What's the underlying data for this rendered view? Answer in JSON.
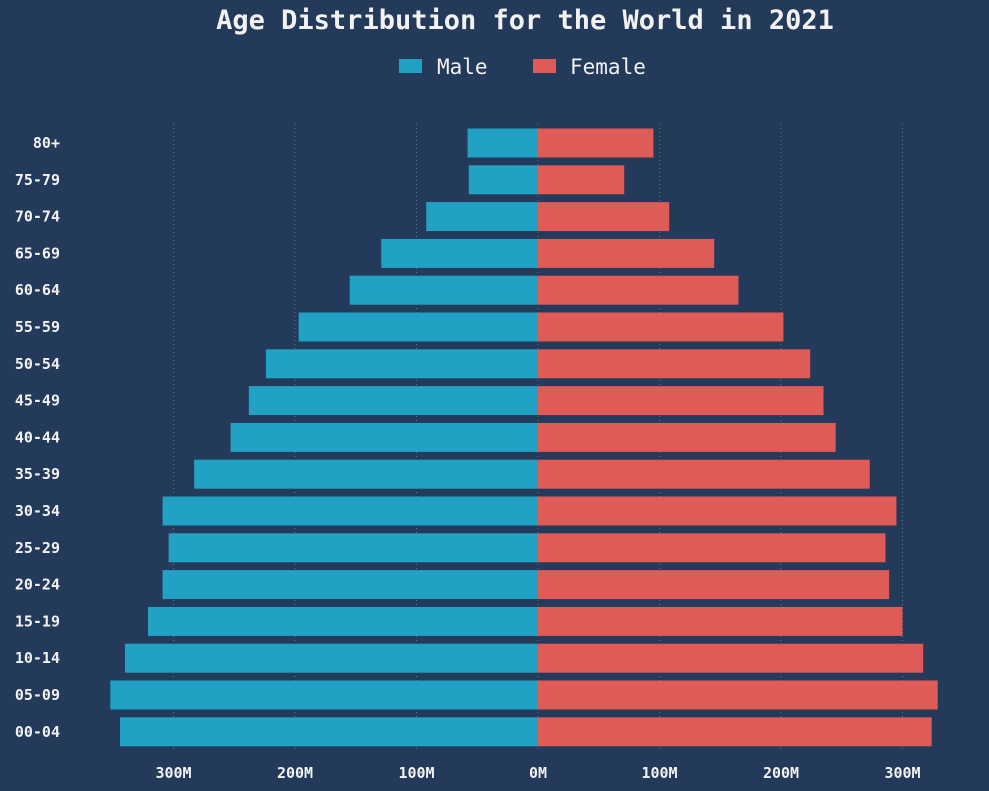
{
  "chart_data": {
    "type": "bar",
    "orientation": "horizontal",
    "title": "Age Distribution for the World in 2021",
    "categories": [
      "80+",
      "75-79",
      "70-74",
      "65-69",
      "60-64",
      "55-59",
      "50-54",
      "45-49",
      "40-44",
      "35-39",
      "30-34",
      "25-29",
      "20-24",
      "15-19",
      "10-14",
      "05-09",
      "00-04"
    ],
    "series": [
      {
        "name": "Male",
        "color": "#21a2c4",
        "values": [
          58,
          57,
          92,
          129,
          155,
          197,
          224,
          238,
          253,
          283,
          309,
          304,
          309,
          321,
          340,
          352,
          344
        ]
      },
      {
        "name": "Female",
        "color": "#de5b56",
        "values": [
          95,
          71,
          108,
          145,
          165,
          202,
          224,
          235,
          245,
          273,
          295,
          286,
          289,
          300,
          317,
          329,
          324
        ]
      }
    ],
    "x_ticks": [
      {
        "value": -300,
        "label": "300M"
      },
      {
        "value": -200,
        "label": "200M"
      },
      {
        "value": -100,
        "label": "100M"
      },
      {
        "value": 0,
        "label": "0M"
      },
      {
        "value": 100,
        "label": "100M"
      },
      {
        "value": 200,
        "label": "200M"
      },
      {
        "value": 300,
        "label": "300M"
      }
    ],
    "xlim": [
      -352,
      329
    ],
    "grid": true,
    "legend_position": "top-center"
  }
}
